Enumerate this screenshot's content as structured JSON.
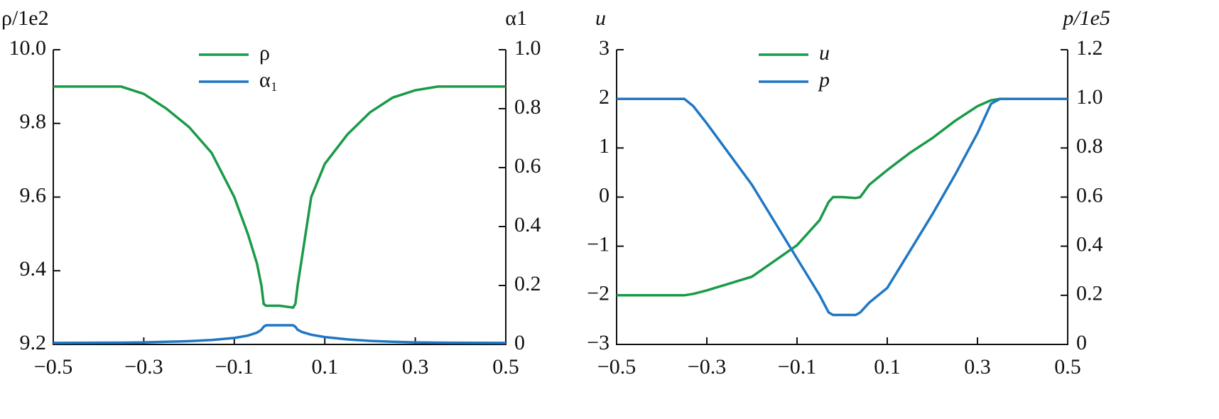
{
  "chart_data": [
    {
      "type": "line",
      "ylabel": "ρ/1e2",
      "y2label": "α1",
      "x": [
        -0.5,
        -0.35,
        -0.3,
        -0.25,
        -0.2,
        -0.15,
        -0.1,
        -0.07,
        -0.05,
        -0.04,
        -0.035,
        -0.03,
        0,
        0.03,
        0.035,
        0.04,
        0.05,
        0.07,
        0.1,
        0.15,
        0.2,
        0.25,
        0.3,
        0.35,
        0.5
      ],
      "xlim": [
        -0.5,
        0.5
      ],
      "xticks": [
        {
          "value": -0.5,
          "label": "−0.5"
        },
        {
          "value": -0.3,
          "label": "−0.3"
        },
        {
          "value": -0.1,
          "label": "−0.1"
        },
        0.1,
        0.3,
        0.5
      ],
      "ylim": [
        9.2,
        10.0
      ],
      "yticks": [
        9.2,
        9.4,
        9.6,
        9.8,
        {
          "value": 10.0,
          "label": "10.0"
        }
      ],
      "y2lim": [
        0,
        1.0
      ],
      "y2ticks": [
        0,
        0.2,
        0.4,
        0.6,
        0.8,
        {
          "value": 1.0,
          "label": "1.0"
        }
      ],
      "series": [
        {
          "name": "ρ",
          "color": "#1a9a48",
          "values": [
            9.9,
            9.9,
            9.88,
            9.84,
            9.79,
            9.72,
            9.6,
            9.5,
            9.42,
            9.36,
            9.31,
            9.305,
            9.305,
            9.3,
            9.31,
            9.36,
            9.44,
            9.6,
            9.69,
            9.77,
            9.83,
            9.87,
            9.89,
            9.9,
            9.9
          ]
        },
        {
          "name": "α₁",
          "color": "#1f77c4",
          "axis": "y2",
          "values": [
            0.005,
            0.006,
            0.007,
            0.009,
            0.011,
            0.015,
            0.022,
            0.03,
            0.04,
            0.05,
            0.06,
            0.065,
            0.065,
            0.065,
            0.06,
            0.05,
            0.042,
            0.033,
            0.025,
            0.017,
            0.012,
            0.009,
            0.007,
            0.006,
            0.005
          ]
        }
      ]
    },
    {
      "type": "line",
      "ylabel": "u",
      "y2label": "p/1e5",
      "x": [
        -0.5,
        -0.35,
        -0.33,
        -0.3,
        -0.2,
        -0.1,
        -0.05,
        -0.03,
        -0.02,
        0,
        0.03,
        0.04,
        0.06,
        0.1,
        0.15,
        0.2,
        0.25,
        0.3,
        0.33,
        0.35,
        0.5
      ],
      "xlim": [
        -0.5,
        0.5
      ],
      "xticks": [
        {
          "value": -0.5,
          "label": "−0.5"
        },
        {
          "value": -0.3,
          "label": "−0.3"
        },
        {
          "value": -0.1,
          "label": "−0.1"
        },
        0.1,
        0.3,
        0.5
      ],
      "ylim": [
        -3,
        3
      ],
      "yticks": [
        {
          "value": -3,
          "label": "−3"
        },
        {
          "value": -2,
          "label": "−2"
        },
        {
          "value": -1,
          "label": "−1"
        },
        0,
        1,
        2,
        3
      ],
      "y2lim": [
        0,
        1.2
      ],
      "y2ticks": [
        0,
        0.2,
        0.4,
        0.6,
        0.8,
        {
          "value": 1.0,
          "label": "1.0"
        },
        1.2
      ],
      "series": [
        {
          "name": "u",
          "color": "#1a9a48",
          "values": [
            -2,
            -2,
            -1.97,
            -1.9,
            -1.62,
            -0.98,
            -0.47,
            -0.1,
            0,
            0,
            -0.02,
            0,
            0.25,
            0.55,
            0.9,
            1.2,
            1.55,
            1.85,
            1.97,
            2,
            2
          ]
        },
        {
          "name": "p",
          "color": "#1f77c4",
          "axis": "y2",
          "values": [
            1,
            1,
            0.97,
            0.9,
            0.65,
            0.35,
            0.2,
            0.13,
            0.12,
            0.12,
            0.12,
            0.13,
            0.17,
            0.23,
            0.38,
            0.53,
            0.69,
            0.86,
            0.98,
            1,
            1
          ]
        }
      ]
    }
  ]
}
